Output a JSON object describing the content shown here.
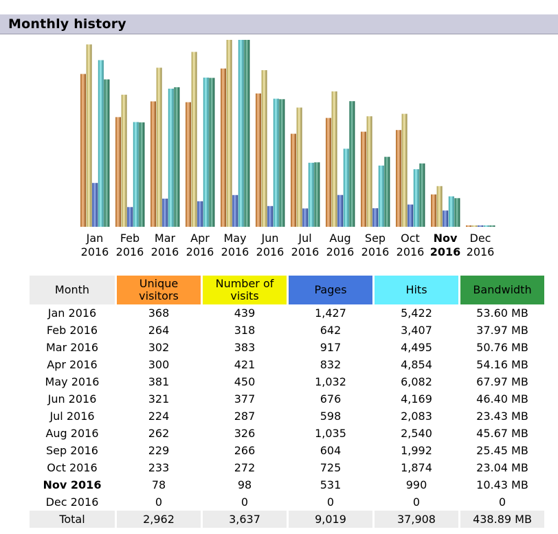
{
  "header": {
    "title": "Monthly history"
  },
  "colors": {
    "unique_visitors": "#e8862a",
    "visits": "#e6d36a",
    "pages": "#3b64d6",
    "hits": "#48d7de",
    "bandwidth": "#1e8f66",
    "header_bg": "#ccccdd"
  },
  "table": {
    "headers": [
      "Month",
      "Unique visitors",
      "Number of visits",
      "Pages",
      "Hits",
      "Bandwidth"
    ],
    "rows": [
      {
        "month": "Jan 2016",
        "unique": "368",
        "visits": "439",
        "pages": "1,427",
        "hits": "5,422",
        "bandwidth": "53.60 MB",
        "bold": false
      },
      {
        "month": "Feb 2016",
        "unique": "264",
        "visits": "318",
        "pages": "642",
        "hits": "3,407",
        "bandwidth": "37.97 MB",
        "bold": false
      },
      {
        "month": "Mar 2016",
        "unique": "302",
        "visits": "383",
        "pages": "917",
        "hits": "4,495",
        "bandwidth": "50.76 MB",
        "bold": false
      },
      {
        "month": "Apr 2016",
        "unique": "300",
        "visits": "421",
        "pages": "832",
        "hits": "4,854",
        "bandwidth": "54.16 MB",
        "bold": false
      },
      {
        "month": "May 2016",
        "unique": "381",
        "visits": "450",
        "pages": "1,032",
        "hits": "6,082",
        "bandwidth": "67.97 MB",
        "bold": false
      },
      {
        "month": "Jun 2016",
        "unique": "321",
        "visits": "377",
        "pages": "676",
        "hits": "4,169",
        "bandwidth": "46.40 MB",
        "bold": false
      },
      {
        "month": "Jul 2016",
        "unique": "224",
        "visits": "287",
        "pages": "598",
        "hits": "2,083",
        "bandwidth": "23.43 MB",
        "bold": false
      },
      {
        "month": "Aug 2016",
        "unique": "262",
        "visits": "326",
        "pages": "1,035",
        "hits": "2,540",
        "bandwidth": "45.67 MB",
        "bold": false
      },
      {
        "month": "Sep 2016",
        "unique": "229",
        "visits": "266",
        "pages": "604",
        "hits": "1,992",
        "bandwidth": "25.45 MB",
        "bold": false
      },
      {
        "month": "Oct 2016",
        "unique": "233",
        "visits": "272",
        "pages": "725",
        "hits": "1,874",
        "bandwidth": "23.04 MB",
        "bold": false
      },
      {
        "month": "Nov 2016",
        "unique": "78",
        "visits": "98",
        "pages": "531",
        "hits": "990",
        "bandwidth": "10.43 MB",
        "bold": true
      },
      {
        "month": "Dec 2016",
        "unique": "0",
        "visits": "0",
        "pages": "0",
        "hits": "0",
        "bandwidth": "0",
        "bold": false
      }
    ],
    "total": {
      "month": "Total",
      "unique": "2,962",
      "visits": "3,637",
      "pages": "9,019",
      "hits": "37,908",
      "bandwidth": "438.89 MB"
    }
  },
  "chart_data": {
    "type": "bar",
    "categories": [
      {
        "month": "Jan",
        "year": "2016"
      },
      {
        "month": "Feb",
        "year": "2016"
      },
      {
        "month": "Mar",
        "year": "2016"
      },
      {
        "month": "Apr",
        "year": "2016"
      },
      {
        "month": "May",
        "year": "2016"
      },
      {
        "month": "Jun",
        "year": "2016"
      },
      {
        "month": "Jul",
        "year": "2016"
      },
      {
        "month": "Aug",
        "year": "2016"
      },
      {
        "month": "Sep",
        "year": "2016"
      },
      {
        "month": "Oct",
        "year": "2016"
      },
      {
        "month": "Nov",
        "year": "2016",
        "bold": true
      },
      {
        "month": "Dec",
        "year": "2016"
      }
    ],
    "series": [
      {
        "key": "unique_visitors",
        "values": [
          368,
          264,
          302,
          300,
          381,
          321,
          224,
          262,
          229,
          233,
          78,
          0
        ]
      },
      {
        "key": "visits",
        "values": [
          439,
          318,
          383,
          421,
          450,
          377,
          287,
          326,
          266,
          272,
          98,
          0
        ]
      },
      {
        "key": "pages",
        "values": [
          1427,
          642,
          917,
          832,
          1032,
          676,
          598,
          1035,
          604,
          725,
          531,
          0
        ]
      },
      {
        "key": "hits",
        "values": [
          5422,
          3407,
          4495,
          4854,
          6082,
          4169,
          2083,
          2540,
          1992,
          1874,
          990,
          0
        ]
      },
      {
        "key": "bandwidth",
        "values": [
          53.6,
          37.97,
          50.76,
          54.16,
          67.97,
          46.4,
          23.43,
          45.67,
          25.45,
          23.04,
          10.43,
          0
        ]
      }
    ],
    "scale_groups": [
      [
        "unique_visitors",
        "visits"
      ],
      [
        "pages",
        "hits"
      ],
      [
        "bandwidth"
      ]
    ],
    "legend": "none",
    "grid": false
  }
}
